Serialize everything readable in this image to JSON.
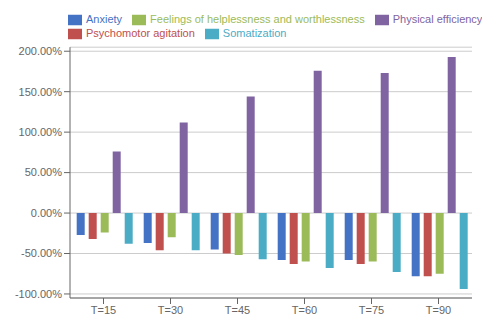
{
  "chart_data": {
    "type": "bar",
    "categories": [
      "T=15",
      "T=30",
      "T=45",
      "T=60",
      "T=75",
      "T=90"
    ],
    "series": [
      {
        "name": "Anxiety",
        "color": "#4472C4",
        "values": [
          -0.27,
          -0.37,
          -0.45,
          -0.58,
          -0.58,
          -0.78
        ]
      },
      {
        "name": "Psychomotor agitation",
        "color": "#C0504D",
        "values": [
          -0.32,
          -0.46,
          -0.5,
          -0.63,
          -0.63,
          -0.78
        ]
      },
      {
        "name": "Feelings of helplessness and worthlessness",
        "color": "#9BBB59",
        "values": [
          -0.24,
          -0.3,
          -0.52,
          -0.6,
          -0.6,
          -0.75
        ]
      },
      {
        "name": "Physical efficiency",
        "color": "#8064A2",
        "values": [
          0.76,
          1.12,
          1.44,
          1.76,
          1.73,
          1.93
        ]
      },
      {
        "name": "Somatization",
        "color": "#4BACC6",
        "values": [
          -0.38,
          -0.46,
          -0.57,
          -0.68,
          -0.73,
          -0.94
        ]
      }
    ],
    "ylim": [
      -1.05,
      2.05
    ],
    "yticks": [
      {
        "value": -1.0,
        "label": "-100.00%"
      },
      {
        "value": -0.5,
        "label": "-50.00%"
      },
      {
        "value": 0.0,
        "label": "0.00%"
      },
      {
        "value": 0.5,
        "label": "50.00%"
      },
      {
        "value": 1.0,
        "label": "100.00%"
      },
      {
        "value": 1.5,
        "label": "150.00%"
      },
      {
        "value": 2.0,
        "label": "200.00%"
      }
    ],
    "grid": true,
    "legend": "upper left"
  }
}
